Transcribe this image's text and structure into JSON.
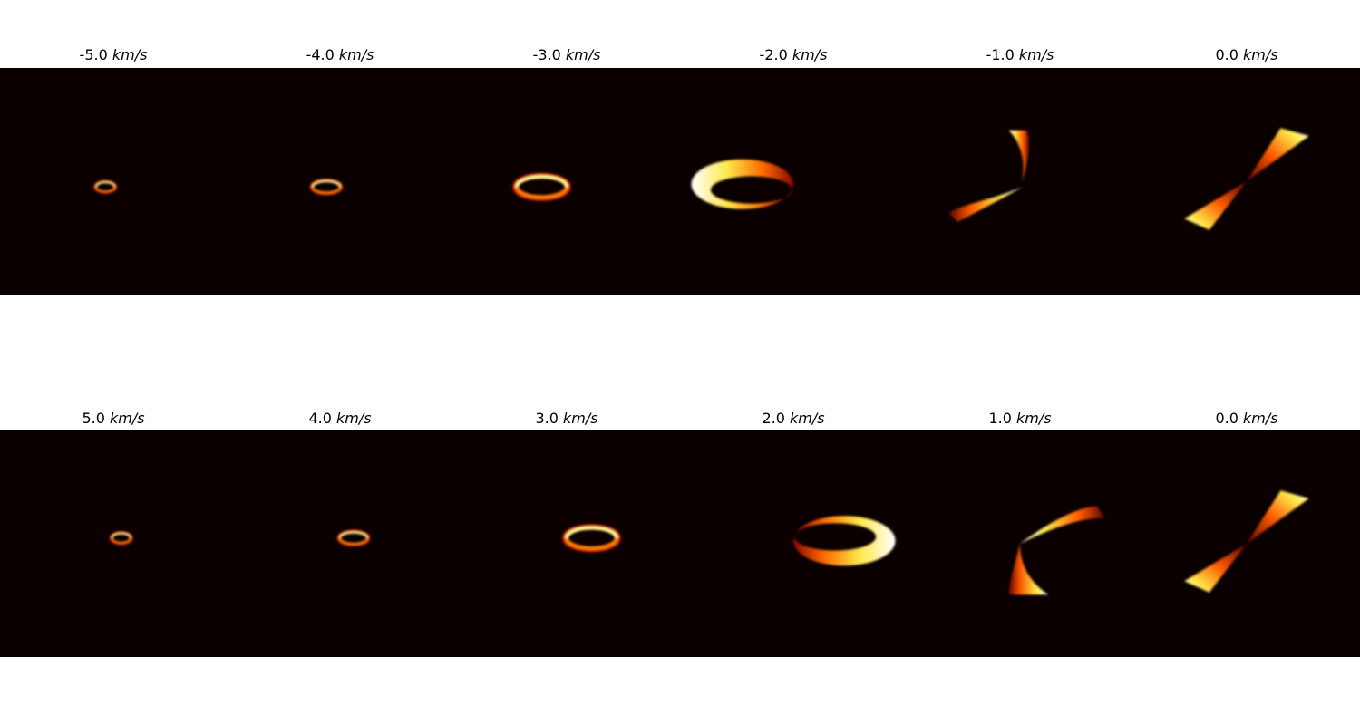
{
  "chart_data": {
    "type": "heatmap",
    "colormap": "hot",
    "background_color": "#0a0000",
    "grid": false,
    "axes_visible": false,
    "rows": [
      {
        "panels": [
          {
            "velocity": "-5.0",
            "unit": "km/s",
            "shape": "ring",
            "cx": -0.07,
            "cy": -0.05,
            "rx": 0.08,
            "ry": 0.04,
            "skew": 0.0
          },
          {
            "velocity": "-4.0",
            "unit": "km/s",
            "shape": "ring",
            "cx": -0.12,
            "cy": -0.05,
            "rx": 0.12,
            "ry": 0.05,
            "skew": 0.0
          },
          {
            "velocity": "-3.0",
            "unit": "km/s",
            "shape": "ring",
            "cx": -0.22,
            "cy": -0.05,
            "rx": 0.22,
            "ry": 0.09,
            "skew": 0.0
          },
          {
            "velocity": "-2.0",
            "unit": "km/s",
            "shape": "crescent",
            "cx": -0.45,
            "cy": -0.05,
            "rx": 0.45,
            "ry": 0.22,
            "skew": 0.0
          },
          {
            "velocity": "-1.0",
            "unit": "km/s",
            "shape": "hook",
            "cx": -0.05,
            "cy": -0.05,
            "rx": 0.0,
            "ry": 0.0,
            "skew": 0.0
          },
          {
            "velocity": "0.0",
            "unit": "km/s",
            "shape": "bowtie",
            "cx": 0.0,
            "cy": 0.0,
            "rx": 0.0,
            "ry": 0.0,
            "skew": 0.0
          }
        ]
      },
      {
        "panels": [
          {
            "velocity": "5.0",
            "unit": "km/s",
            "shape": "ring",
            "cx": 0.07,
            "cy": 0.05,
            "rx": 0.08,
            "ry": 0.04,
            "skew": 0.0
          },
          {
            "velocity": "4.0",
            "unit": "km/s",
            "shape": "ring",
            "cx": 0.12,
            "cy": 0.05,
            "rx": 0.12,
            "ry": 0.05,
            "skew": 0.0
          },
          {
            "velocity": "3.0",
            "unit": "km/s",
            "shape": "ring",
            "cx": 0.22,
            "cy": 0.05,
            "rx": 0.22,
            "ry": 0.09,
            "skew": 0.0
          },
          {
            "velocity": "2.0",
            "unit": "km/s",
            "shape": "crescent",
            "cx": 0.45,
            "cy": 0.05,
            "rx": 0.45,
            "ry": 0.22,
            "skew": 0.0
          },
          {
            "velocity": "1.0",
            "unit": "km/s",
            "shape": "hook",
            "cx": 0.05,
            "cy": 0.05,
            "rx": 0.0,
            "ry": 0.0,
            "skew": 0.0
          },
          {
            "velocity": "0.0",
            "unit": "km/s",
            "shape": "bowtie",
            "cx": 0.0,
            "cy": 0.0,
            "rx": 0.0,
            "ry": 0.0,
            "skew": 0.0
          }
        ]
      }
    ]
  }
}
